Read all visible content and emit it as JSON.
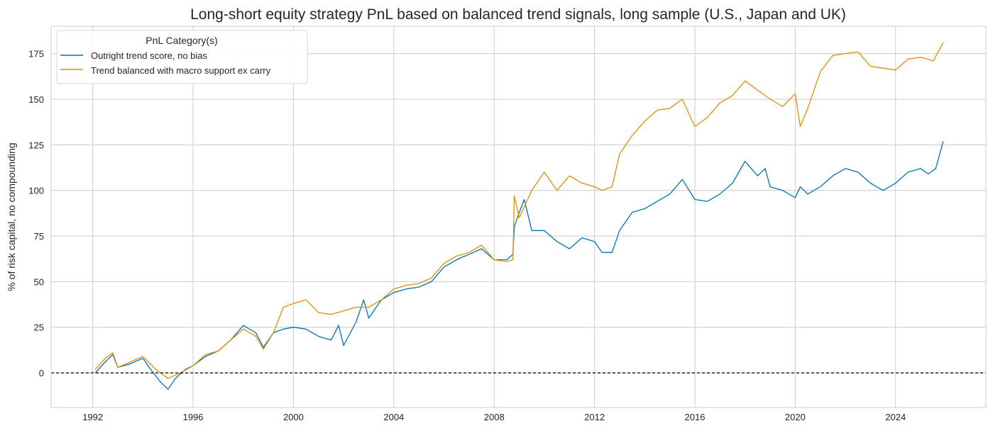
{
  "chart_data": {
    "type": "line",
    "title": "Long-short equity strategy PnL based on balanced trend signals, long sample (U.S., Japan and UK)",
    "xlabel": "",
    "ylabel": "% of risk capital, no compounding",
    "xlim": [
      1990.34,
      2027.6
    ],
    "ylim": [
      -19,
      190
    ],
    "x_ticks": [
      "1992",
      "1996",
      "2000",
      "2004",
      "2008",
      "2012",
      "2016",
      "2020",
      "2024"
    ],
    "y_ticks": [
      0,
      25,
      50,
      75,
      100,
      125,
      150,
      175
    ],
    "grid": true,
    "zero_line": {
      "value": 0,
      "style": "dashed",
      "color": "#000000"
    },
    "legend": {
      "title": "PnL Category(s)",
      "placement": "top-left"
    },
    "series": [
      {
        "name": "Outright trend score, no bias",
        "color": "#0173b2",
        "points": [
          [
            1992.1,
            0
          ],
          [
            1992.5,
            6
          ],
          [
            1992.8,
            10
          ],
          [
            1993.0,
            3
          ],
          [
            1993.5,
            5
          ],
          [
            1994.0,
            8
          ],
          [
            1994.3,
            2
          ],
          [
            1994.7,
            -5
          ],
          [
            1995.0,
            -9
          ],
          [
            1995.3,
            -3
          ],
          [
            1995.7,
            2
          ],
          [
            1996.0,
            4
          ],
          [
            1996.5,
            9
          ],
          [
            1997.0,
            12
          ],
          [
            1997.5,
            18
          ],
          [
            1998.0,
            26
          ],
          [
            1998.5,
            22
          ],
          [
            1998.8,
            14
          ],
          [
            1999.2,
            22
          ],
          [
            1999.6,
            24
          ],
          [
            2000.0,
            25
          ],
          [
            2000.5,
            24
          ],
          [
            2001.0,
            20
          ],
          [
            2001.5,
            18
          ],
          [
            2001.8,
            26
          ],
          [
            2002.0,
            15
          ],
          [
            2002.5,
            28
          ],
          [
            2002.8,
            40
          ],
          [
            2003.0,
            30
          ],
          [
            2003.5,
            40
          ],
          [
            2004.0,
            44
          ],
          [
            2004.5,
            46
          ],
          [
            2005.0,
            47
          ],
          [
            2005.5,
            50
          ],
          [
            2006.0,
            58
          ],
          [
            2006.5,
            62
          ],
          [
            2007.0,
            65
          ],
          [
            2007.5,
            68
          ],
          [
            2008.0,
            62
          ],
          [
            2008.5,
            62
          ],
          [
            2008.75,
            65
          ],
          [
            2008.8,
            80
          ],
          [
            2009.0,
            88
          ],
          [
            2009.2,
            95
          ],
          [
            2009.5,
            78
          ],
          [
            2010.0,
            78
          ],
          [
            2010.5,
            72
          ],
          [
            2011.0,
            68
          ],
          [
            2011.5,
            74
          ],
          [
            2012.0,
            72
          ],
          [
            2012.3,
            66
          ],
          [
            2012.7,
            66
          ],
          [
            2013.0,
            78
          ],
          [
            2013.5,
            88
          ],
          [
            2014.0,
            90
          ],
          [
            2014.5,
            94
          ],
          [
            2015.0,
            98
          ],
          [
            2015.5,
            106
          ],
          [
            2016.0,
            95
          ],
          [
            2016.5,
            94
          ],
          [
            2017.0,
            98
          ],
          [
            2017.5,
            104
          ],
          [
            2018.0,
            116
          ],
          [
            2018.5,
            108
          ],
          [
            2018.8,
            112
          ],
          [
            2019.0,
            102
          ],
          [
            2019.5,
            100
          ],
          [
            2020.0,
            96
          ],
          [
            2020.2,
            102
          ],
          [
            2020.5,
            98
          ],
          [
            2021.0,
            102
          ],
          [
            2021.5,
            108
          ],
          [
            2022.0,
            112
          ],
          [
            2022.5,
            110
          ],
          [
            2023.0,
            104
          ],
          [
            2023.5,
            100
          ],
          [
            2024.0,
            104
          ],
          [
            2024.5,
            110
          ],
          [
            2025.0,
            112
          ],
          [
            2025.3,
            109
          ],
          [
            2025.6,
            112
          ],
          [
            2025.9,
            127
          ]
        ]
      },
      {
        "name": "Trend balanced with macro support ex carry",
        "color": "#de8f05",
        "points": [
          [
            1992.1,
            2
          ],
          [
            1992.5,
            8
          ],
          [
            1992.8,
            11
          ],
          [
            1993.0,
            3
          ],
          [
            1993.5,
            6
          ],
          [
            1994.0,
            9
          ],
          [
            1994.5,
            2
          ],
          [
            1995.0,
            -3
          ],
          [
            1995.5,
            0
          ],
          [
            1996.0,
            4
          ],
          [
            1996.5,
            10
          ],
          [
            1997.0,
            12
          ],
          [
            1997.5,
            18
          ],
          [
            1998.0,
            24
          ],
          [
            1998.5,
            20
          ],
          [
            1998.8,
            13
          ],
          [
            1999.2,
            22
          ],
          [
            1999.6,
            36
          ],
          [
            2000.0,
            38
          ],
          [
            2000.5,
            40
          ],
          [
            2001.0,
            33
          ],
          [
            2001.5,
            32
          ],
          [
            2002.0,
            34
          ],
          [
            2002.5,
            36
          ],
          [
            2003.0,
            36
          ],
          [
            2003.5,
            40
          ],
          [
            2004.0,
            46
          ],
          [
            2004.5,
            48
          ],
          [
            2005.0,
            49
          ],
          [
            2005.5,
            52
          ],
          [
            2006.0,
            60
          ],
          [
            2006.5,
            64
          ],
          [
            2007.0,
            66
          ],
          [
            2007.5,
            70
          ],
          [
            2008.0,
            62
          ],
          [
            2008.5,
            61
          ],
          [
            2008.75,
            62
          ],
          [
            2008.8,
            97
          ],
          [
            2009.0,
            85
          ],
          [
            2009.5,
            100
          ],
          [
            2010.0,
            110
          ],
          [
            2010.5,
            100
          ],
          [
            2011.0,
            108
          ],
          [
            2011.5,
            104
          ],
          [
            2012.0,
            102
          ],
          [
            2012.3,
            100
          ],
          [
            2012.7,
            102
          ],
          [
            2013.0,
            120
          ],
          [
            2013.5,
            130
          ],
          [
            2014.0,
            138
          ],
          [
            2014.5,
            144
          ],
          [
            2015.0,
            145
          ],
          [
            2015.5,
            150
          ],
          [
            2016.0,
            135
          ],
          [
            2016.5,
            140
          ],
          [
            2017.0,
            148
          ],
          [
            2017.5,
            152
          ],
          [
            2018.0,
            160
          ],
          [
            2018.5,
            155
          ],
          [
            2019.0,
            150
          ],
          [
            2019.5,
            146
          ],
          [
            2020.0,
            153
          ],
          [
            2020.2,
            135
          ],
          [
            2020.5,
            145
          ],
          [
            2021.0,
            165
          ],
          [
            2021.5,
            174
          ],
          [
            2022.0,
            175
          ],
          [
            2022.5,
            176
          ],
          [
            2023.0,
            168
          ],
          [
            2023.5,
            167
          ],
          [
            2024.0,
            166
          ],
          [
            2024.5,
            172
          ],
          [
            2025.0,
            173
          ],
          [
            2025.5,
            171
          ],
          [
            2025.9,
            181
          ]
        ]
      }
    ]
  }
}
